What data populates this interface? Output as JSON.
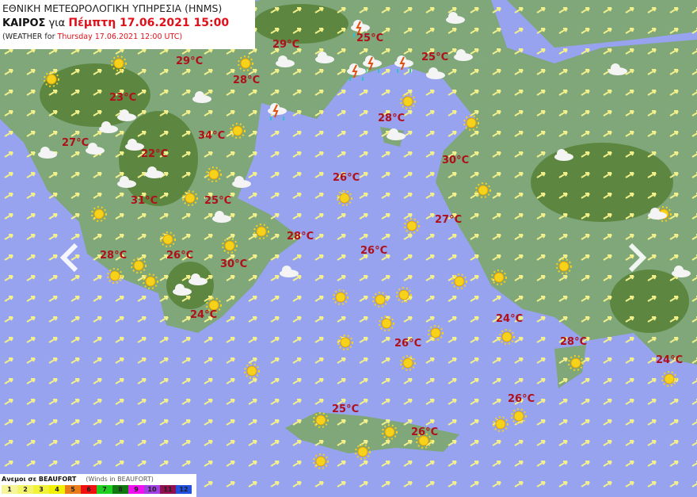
{
  "header": {
    "agency": "ΕΘΝΙΚΗ ΜΕΤΕΩΡΟΛΟΓΙΚΗ ΥΠΗΡΕΣΙΑ (HNMS)",
    "weather_label": "ΚΑΙΡΟΣ",
    "for_word": "για",
    "local_datetime": "Πέμπτη 17.06.2021 15:00",
    "en_prefix": "(WEATHER for",
    "en_datetime": "Thursday 17.06.2021 12:00 UTC)"
  },
  "colors": {
    "sea": "#97a3ef",
    "land": "#7fa77a",
    "mountain": "#557f33",
    "temperature": "#b0101a",
    "wind_arrow": "#f4f08a"
  },
  "temperatures": [
    "29°C",
    "29°C",
    "25°C",
    "25°C",
    "28°C",
    "23°C",
    "28°C",
    "27°C",
    "34°C",
    "22°C",
    "30°C",
    "26°C",
    "31°C",
    "25°C",
    "27°C",
    "28°C",
    "28°C",
    "26°C",
    "26°C",
    "30°C",
    "24°C",
    "24°C",
    "26°C",
    "28°C",
    "24°C",
    "26°C",
    "25°C",
    "26°C"
  ],
  "navigation": {
    "prev_icon": "chevron-left-icon",
    "next_icon": "chevron-right-icon"
  },
  "legend": {
    "title": "Ανεμοι σε BEAUFORT",
    "subtitle": "(Winds in BEAUFORT)",
    "levels": [
      {
        "label": "1",
        "color": "#f6f59a"
      },
      {
        "label": "2",
        "color": "#f4f46a"
      },
      {
        "label": "3",
        "color": "#f2f23a"
      },
      {
        "label": "4",
        "color": "#f0f000"
      },
      {
        "label": "5",
        "color": "#e87d1a"
      },
      {
        "label": "6",
        "color": "#f01010"
      },
      {
        "label": "7",
        "color": "#20d020"
      },
      {
        "label": "8",
        "color": "#107a10"
      },
      {
        "label": "9",
        "color": "#f010f0"
      },
      {
        "label": "10",
        "color": "#a040e0"
      },
      {
        "label": "11",
        "color": "#901050"
      },
      {
        "label": "12",
        "color": "#2050e0"
      }
    ]
  }
}
